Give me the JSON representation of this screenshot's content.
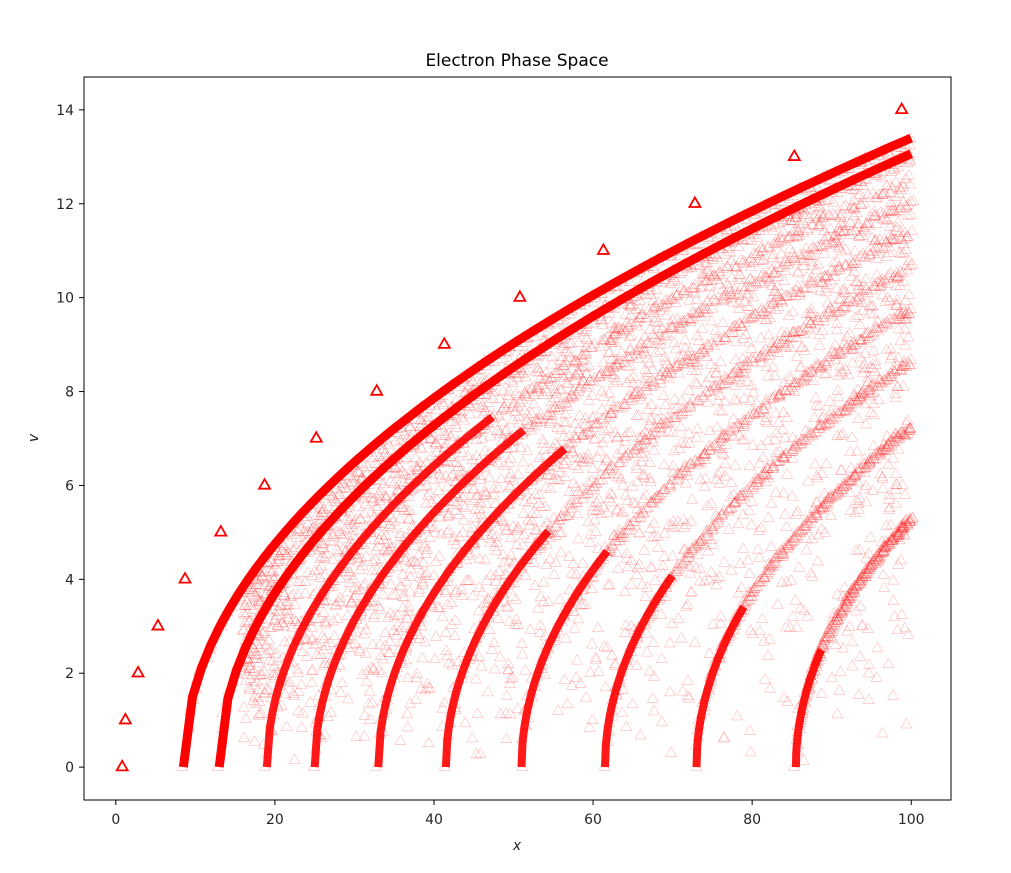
{
  "chart_data": {
    "type": "scatter",
    "title": "Electron Phase Space",
    "xlabel": "x",
    "ylabel": "v",
    "xlim": [
      -4,
      105
    ],
    "ylim": [
      -0.7,
      14.7
    ],
    "x_ticks": [
      0,
      20,
      40,
      60,
      80,
      100
    ],
    "y_ticks": [
      0,
      2,
      4,
      6,
      8,
      10,
      12,
      14
    ],
    "x_tick_labels": [
      "0",
      "20",
      "40",
      "60",
      "80",
      "100"
    ],
    "y_tick_labels": [
      "0",
      "2",
      "4",
      "6",
      "8",
      "10",
      "12",
      "14"
    ],
    "grid": false,
    "legend": "none",
    "marker": "triangle-open",
    "color": "#ff0000",
    "series": [
      {
        "style": "bold",
        "points": [
          [
            0.8,
            0
          ],
          [
            1.2,
            1
          ],
          [
            2.8,
            2
          ],
          [
            5.3,
            3
          ],
          [
            8.7,
            4
          ],
          [
            13.2,
            5
          ],
          [
            18.7,
            6
          ],
          [
            25.2,
            7
          ],
          [
            32.8,
            8
          ],
          [
            41.3,
            9
          ],
          [
            50.8,
            10
          ],
          [
            61.3,
            11
          ],
          [
            72.8,
            12
          ],
          [
            85.3,
            13
          ],
          [
            98.8,
            14
          ]
        ]
      },
      {
        "style": "faint-cloud",
        "x_start": [
          8.5,
          13,
          19,
          25,
          33,
          41.5,
          51,
          61.5,
          73,
          85.5
        ],
        "x_max": 100,
        "x_extent_min": 16,
        "x_extent_max": 95,
        "v_max_at_x100": 13.4,
        "v_range": [
          0,
          13.4
        ]
      }
    ]
  }
}
